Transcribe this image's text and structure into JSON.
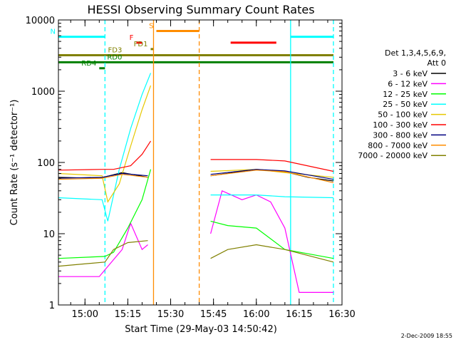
{
  "chart_data": {
    "type": "line",
    "title": "HESSI Observing Summary Count Rates",
    "xlabel": "Start Time (29-May-03 14:50:42)",
    "ylabel": "Count Rate (s⁻¹ detector⁻¹)",
    "ylog": true,
    "ylim": [
      1,
      10000
    ],
    "xlim": [
      "14:50:42",
      "16:30:00"
    ],
    "x_ticks": [
      "15:00",
      "15:15",
      "15:30",
      "15:45",
      "16:00",
      "16:15",
      "16:30"
    ],
    "y_ticks": [
      "1",
      "10",
      "100",
      "1000",
      "10000"
    ],
    "legend_position": "right",
    "legend_header": [
      "Det 1,3,4,5,6,9,",
      "Att 0"
    ],
    "timestamp": "2-Dec-2009 18:55",
    "series": [
      {
        "name": "3 - 6 keV",
        "color": "#000000",
        "points": [
          [
            "14:50:42",
            62
          ],
          [
            "15:05",
            60
          ],
          [
            "15:13",
            72
          ],
          [
            "15:22",
            62
          ],
          [
            "15:40",
            null
          ],
          [
            "15:44",
            65
          ],
          [
            "16:00",
            80
          ],
          [
            "16:10",
            74
          ],
          [
            "16:18",
            62
          ],
          [
            "16:27",
            55
          ]
        ]
      },
      {
        "name": "6 - 12 keV",
        "color": "#ff00ff",
        "points": [
          [
            "14:50:42",
            2.5
          ],
          [
            "15:05",
            2.5
          ],
          [
            "15:13",
            6
          ],
          [
            "15:16",
            14
          ],
          [
            "15:20",
            6
          ],
          [
            "15:22",
            7
          ],
          [
            "15:40",
            null
          ],
          [
            "15:44",
            10
          ],
          [
            "15:48",
            40
          ],
          [
            "15:55",
            30
          ],
          [
            "16:00",
            35
          ],
          [
            "16:05",
            28
          ],
          [
            "16:10",
            12
          ],
          [
            "16:15",
            1.5
          ],
          [
            "16:27",
            1.5
          ]
        ]
      },
      {
        "name": "12 - 25 keV",
        "color": "#00ff00",
        "points": [
          [
            "14:50:42",
            4.5
          ],
          [
            "15:07",
            4.8
          ],
          [
            "15:10",
            5.5
          ],
          [
            "15:15",
            12
          ],
          [
            "15:20",
            30
          ],
          [
            "15:23",
            80
          ],
          [
            "15:40",
            null
          ],
          [
            "15:44",
            15
          ],
          [
            "15:50",
            13
          ],
          [
            "16:00",
            12
          ],
          [
            "16:10",
            6
          ],
          [
            "16:27",
            4.5
          ]
        ]
      },
      {
        "name": "25 - 50 keV",
        "color": "#00ffff",
        "points": [
          [
            "14:50:42",
            32
          ],
          [
            "15:06",
            30
          ],
          [
            "15:08",
            15
          ],
          [
            "15:12",
            80
          ],
          [
            "15:16",
            300
          ],
          [
            "15:20",
            900
          ],
          [
            "15:23",
            1800
          ],
          [
            "15:40",
            null
          ],
          [
            "15:44",
            35
          ],
          [
            "16:00",
            35
          ],
          [
            "16:10",
            33
          ],
          [
            "16:27",
            32
          ]
        ]
      },
      {
        "name": "50 - 100 keV",
        "color": "#e6c800",
        "points": [
          [
            "14:50:42",
            70
          ],
          [
            "15:06",
            65
          ],
          [
            "15:08",
            28
          ],
          [
            "15:12",
            50
          ],
          [
            "15:16",
            170
          ],
          [
            "15:20",
            550
          ],
          [
            "15:23",
            1200
          ],
          [
            "15:40",
            null
          ],
          [
            "15:44",
            75
          ],
          [
            "16:00",
            80
          ],
          [
            "16:10",
            72
          ],
          [
            "16:27",
            62
          ]
        ]
      },
      {
        "name": "100 - 300 keV",
        "color": "#ff0000",
        "points": [
          [
            "14:50:42",
            78
          ],
          [
            "15:06",
            80
          ],
          [
            "15:10",
            80
          ],
          [
            "15:16",
            90
          ],
          [
            "15:20",
            130
          ],
          [
            "15:23",
            200
          ],
          [
            "15:40",
            null
          ],
          [
            "15:44",
            110
          ],
          [
            "16:00",
            110
          ],
          [
            "16:10",
            105
          ],
          [
            "16:27",
            75
          ]
        ]
      },
      {
        "name": "300 - 800 keV",
        "color": "#000080",
        "points": [
          [
            "14:50:42",
            60
          ],
          [
            "15:06",
            62
          ],
          [
            "15:13",
            70
          ],
          [
            "15:22",
            65
          ],
          [
            "15:40",
            null
          ],
          [
            "15:44",
            68
          ],
          [
            "16:00",
            80
          ],
          [
            "16:10",
            76
          ],
          [
            "16:27",
            58
          ]
        ]
      },
      {
        "name": "800 - 7000 keV",
        "color": "#ff8c00",
        "points": [
          [
            "14:50:42",
            58
          ],
          [
            "15:06",
            60
          ],
          [
            "15:13",
            68
          ],
          [
            "15:22",
            62
          ],
          [
            "15:40",
            null
          ],
          [
            "15:44",
            65
          ],
          [
            "16:00",
            78
          ],
          [
            "16:10",
            74
          ],
          [
            "16:27",
            52
          ]
        ]
      },
      {
        "name": "7000 - 20000 keV",
        "color": "#808000",
        "points": [
          [
            "14:50:42",
            3.5
          ],
          [
            "15:07",
            4
          ],
          [
            "15:10",
            6
          ],
          [
            "15:15",
            7.5
          ],
          [
            "15:22",
            8
          ],
          [
            "15:40",
            null
          ],
          [
            "15:44",
            4.5
          ],
          [
            "15:50",
            6
          ],
          [
            "16:00",
            7
          ],
          [
            "16:10",
            6
          ],
          [
            "16:27",
            4
          ]
        ]
      }
    ],
    "flag_bars": [
      {
        "label": "N",
        "color": "#00ffff",
        "y": 5800,
        "segments": [
          [
            "14:50:42",
            "15:07"
          ],
          [
            "16:12",
            "16:27"
          ]
        ]
      },
      {
        "label": "S",
        "color": "#ff8c00",
        "y": 7000,
        "segments": [
          [
            "15:25",
            "15:40"
          ]
        ]
      },
      {
        "label": "F",
        "color": "#ff0000",
        "y": 4800,
        "segments": [
          [
            "15:18",
            "15:20"
          ],
          [
            "15:51",
            "16:07"
          ]
        ]
      },
      {
        "label": "FD1",
        "color": "#808000",
        "y": 3900,
        "segments": [
          [
            "15:23",
            "15:24"
          ]
        ]
      },
      {
        "label": "FD3",
        "color": "#808000",
        "y": 3200,
        "segments": [
          [
            "14:50:42",
            "16:27"
          ]
        ]
      },
      {
        "label": "RD0",
        "color": "#008000",
        "y": 2550,
        "segments": [
          [
            "14:50:42",
            "16:27"
          ]
        ]
      },
      {
        "label": "RD4",
        "color": "#008000",
        "y": 2100,
        "segments": [
          [
            "15:05",
            "15:07"
          ]
        ]
      }
    ],
    "vertical_markers": [
      {
        "time": "15:07",
        "color": "#00ffff",
        "style": "dashed"
      },
      {
        "time": "15:24",
        "color": "#ff8c00",
        "style": "solid"
      },
      {
        "time": "15:40",
        "color": "#ff8c00",
        "style": "dashed"
      },
      {
        "time": "16:12",
        "color": "#00ffff",
        "style": "solid"
      },
      {
        "time": "16:27",
        "color": "#00ffff",
        "style": "dashed"
      }
    ]
  }
}
